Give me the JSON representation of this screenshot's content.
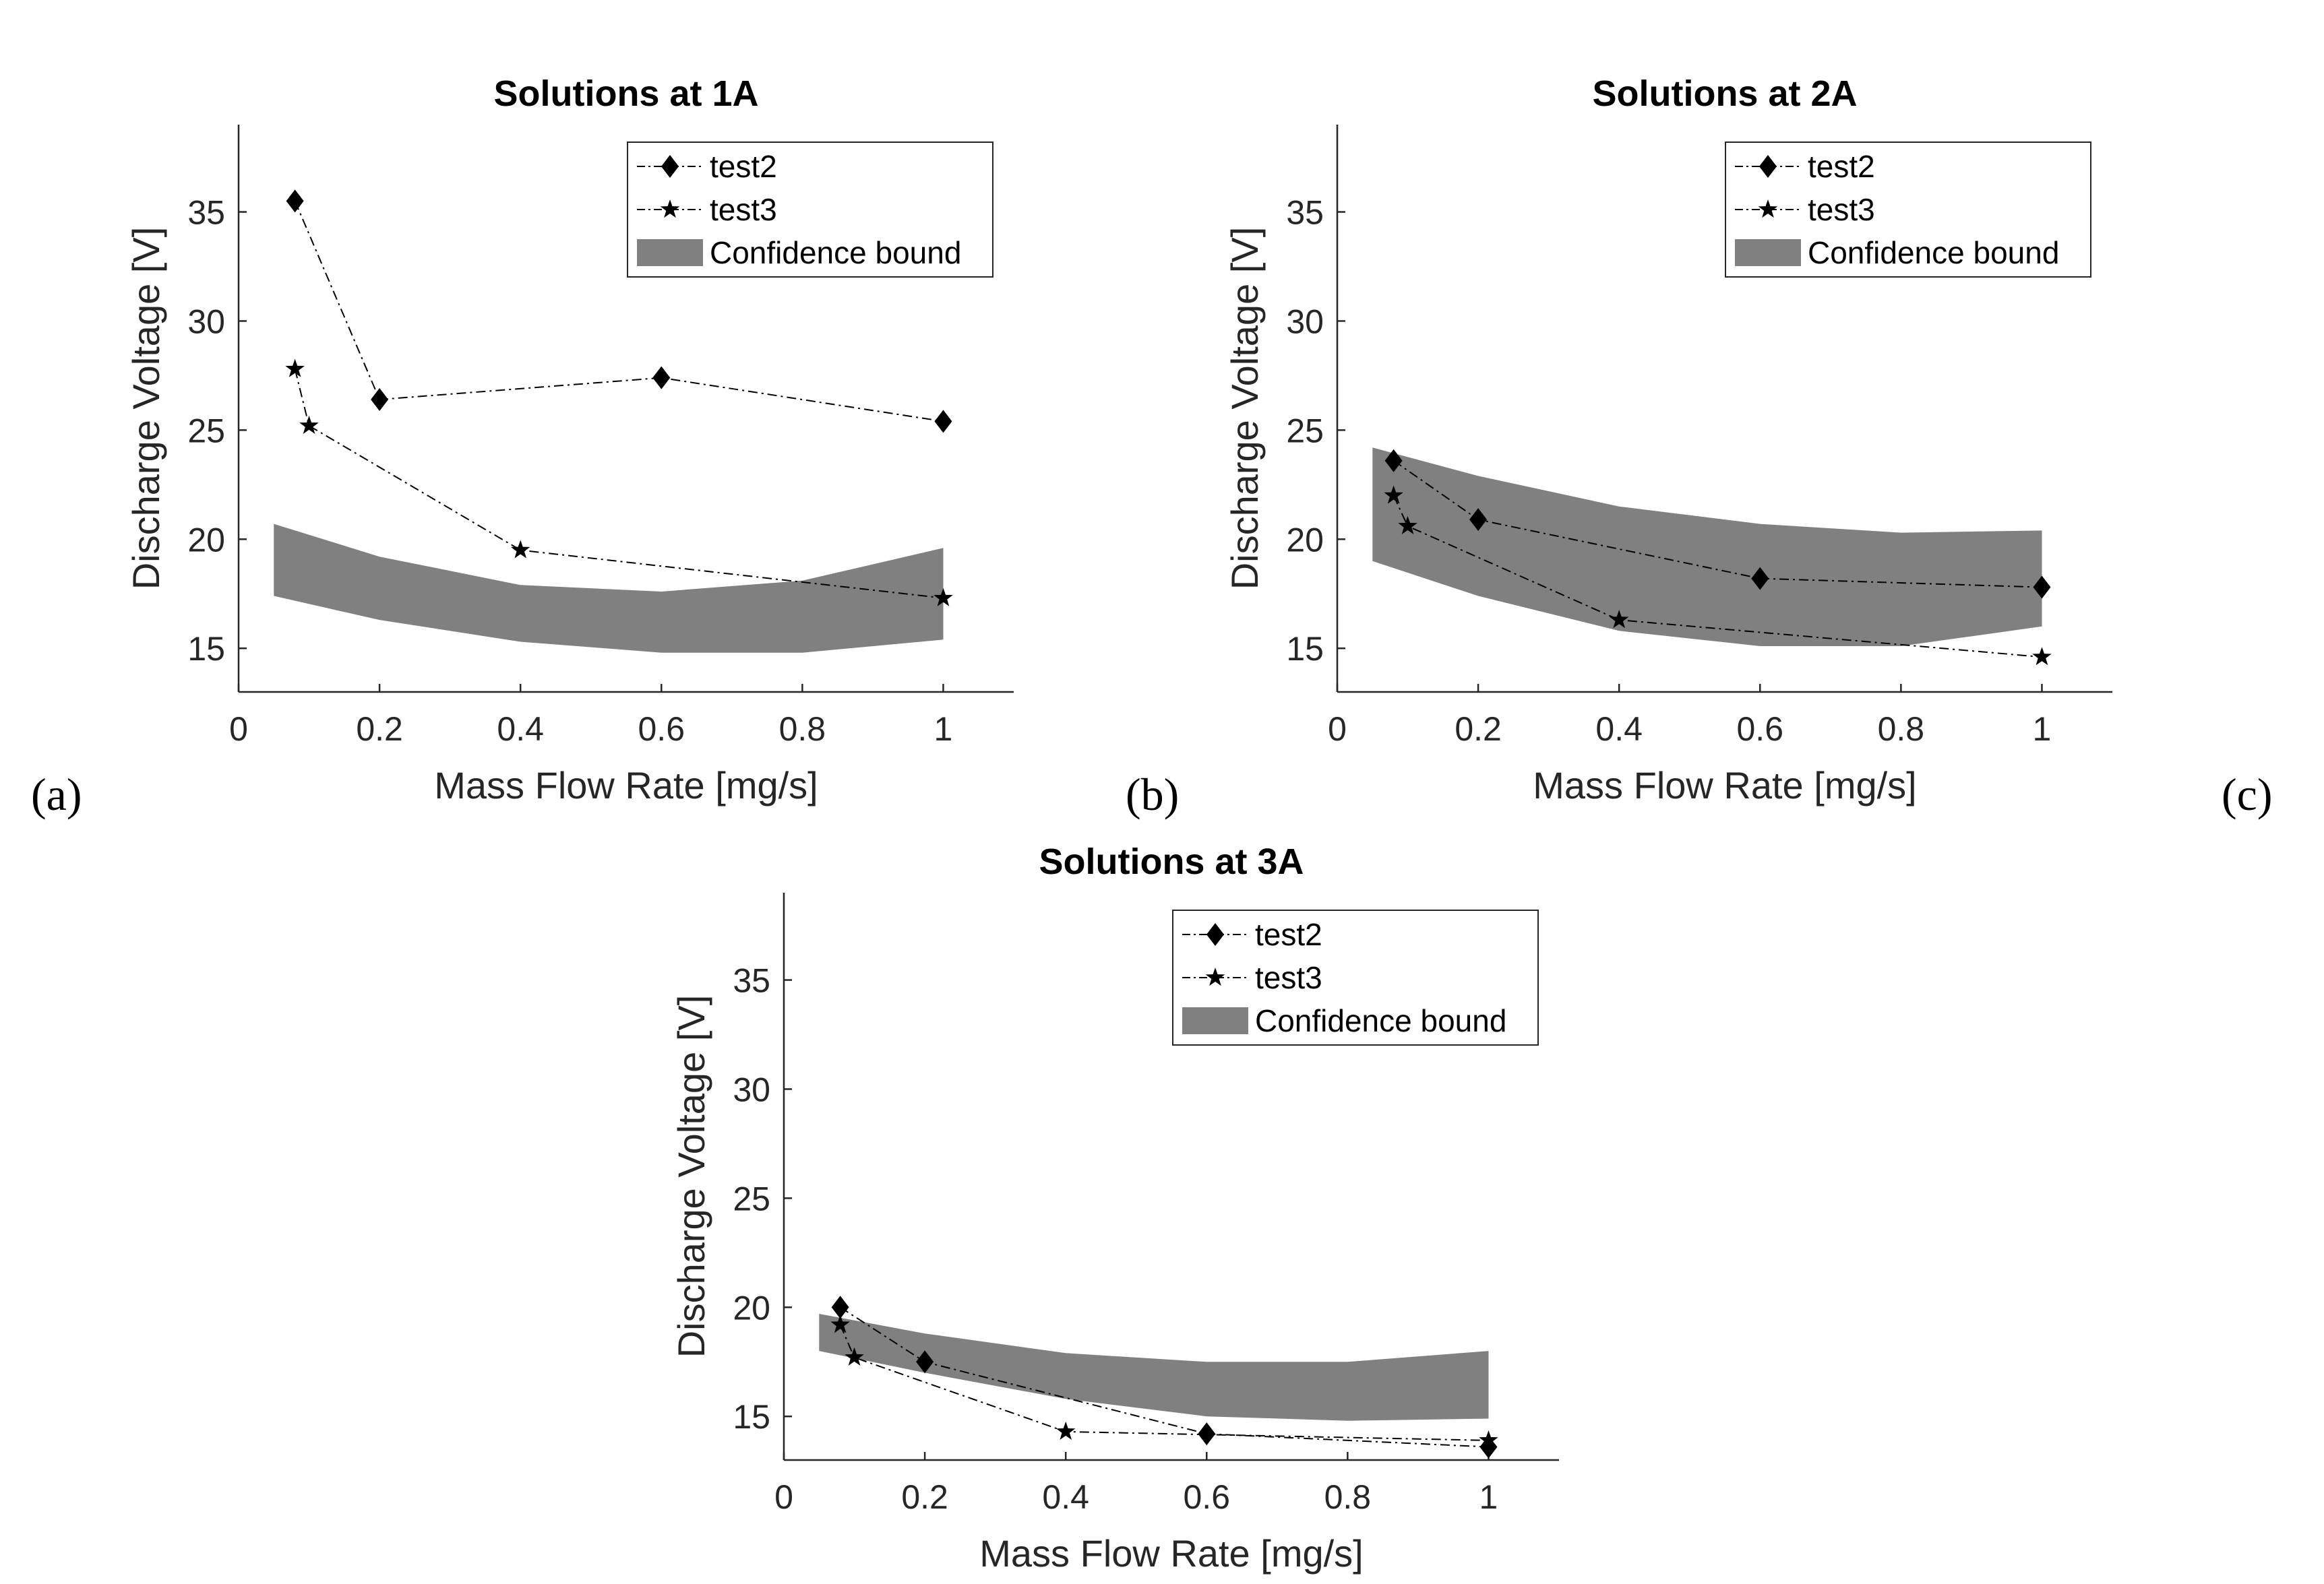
{
  "figure": {
    "panel_labels": [
      "(a)",
      "(b)",
      "(c)"
    ]
  },
  "chart_data": [
    {
      "type": "line",
      "title": "Solutions at 1A",
      "xlabel": "Mass Flow Rate [mg/s]",
      "ylabel": "Discharge Voltage [V]",
      "xlim": [
        0,
        1.1
      ],
      "ylim": [
        13,
        39
      ],
      "xticks": [
        0,
        0.2,
        0.4,
        0.6,
        0.8,
        1
      ],
      "xtick_labels": [
        "0",
        "0.2",
        "0.4",
        "0.6",
        "0.8",
        "1"
      ],
      "yticks": [
        15,
        20,
        25,
        30,
        35
      ],
      "ytick_labels": [
        "15",
        "20",
        "25",
        "30",
        "35"
      ],
      "legend": {
        "entries": [
          "test2",
          "test3",
          "Confidence bound"
        ],
        "position": "top-right"
      },
      "series": [
        {
          "name": "test2",
          "marker": "diamond",
          "x": [
            0.08,
            0.2,
            0.6,
            1.0
          ],
          "y": [
            35.5,
            26.4,
            27.4,
            25.4
          ]
        },
        {
          "name": "test3",
          "marker": "star",
          "x": [
            0.08,
            0.1,
            0.4,
            1.0
          ],
          "y": [
            27.8,
            25.2,
            19.5,
            17.3
          ]
        }
      ],
      "band": {
        "name": "Confidence bound",
        "color": "#808080",
        "x": [
          0.05,
          0.2,
          0.4,
          0.6,
          0.8,
          1.0
        ],
        "lower": [
          17.4,
          16.3,
          15.3,
          14.8,
          14.8,
          15.4
        ],
        "upper": [
          20.7,
          19.2,
          17.9,
          17.6,
          18.1,
          19.6
        ]
      }
    },
    {
      "type": "line",
      "title": "Solutions at 2A",
      "xlabel": "Mass Flow Rate [mg/s]",
      "ylabel": "Discharge Voltage [V]",
      "xlim": [
        0,
        1.1
      ],
      "ylim": [
        13,
        39
      ],
      "xticks": [
        0,
        0.2,
        0.4,
        0.6,
        0.8,
        1
      ],
      "xtick_labels": [
        "0",
        "0.2",
        "0.4",
        "0.6",
        "0.8",
        "1"
      ],
      "yticks": [
        15,
        20,
        25,
        30,
        35
      ],
      "ytick_labels": [
        "15",
        "20",
        "25",
        "30",
        "35"
      ],
      "legend": {
        "entries": [
          "test2",
          "test3",
          "Confidence bound"
        ],
        "position": "top-right"
      },
      "series": [
        {
          "name": "test2",
          "marker": "diamond",
          "x": [
            0.08,
            0.2,
            0.6,
            1.0
          ],
          "y": [
            23.6,
            20.9,
            18.2,
            17.8
          ]
        },
        {
          "name": "test3",
          "marker": "star",
          "x": [
            0.08,
            0.1,
            0.4,
            1.0
          ],
          "y": [
            22.0,
            20.6,
            16.3,
            14.6
          ]
        }
      ],
      "band": {
        "name": "Confidence bound",
        "color": "#808080",
        "x": [
          0.05,
          0.2,
          0.4,
          0.6,
          0.8,
          1.0
        ],
        "lower": [
          19.0,
          17.4,
          15.8,
          15.1,
          15.1,
          16.0
        ],
        "upper": [
          24.2,
          22.9,
          21.5,
          20.7,
          20.3,
          20.4
        ]
      }
    },
    {
      "type": "line",
      "title": "Solutions at 3A",
      "xlabel": "Mass Flow Rate [mg/s]",
      "ylabel": "Discharge Voltage [V]",
      "xlim": [
        0,
        1.1
      ],
      "ylim": [
        13,
        39
      ],
      "xticks": [
        0,
        0.2,
        0.4,
        0.6,
        0.8,
        1
      ],
      "xtick_labels": [
        "0",
        "0.2",
        "0.4",
        "0.6",
        "0.8",
        "1"
      ],
      "yticks": [
        15,
        20,
        25,
        30,
        35
      ],
      "ytick_labels": [
        "15",
        "20",
        "25",
        "30",
        "35"
      ],
      "legend": {
        "entries": [
          "test2",
          "test3",
          "Confidence bound"
        ],
        "position": "top-right"
      },
      "series": [
        {
          "name": "test2",
          "marker": "diamond",
          "x": [
            0.08,
            0.2,
            0.6,
            1.0
          ],
          "y": [
            20.0,
            17.5,
            14.2,
            13.6
          ]
        },
        {
          "name": "test3",
          "marker": "star",
          "x": [
            0.08,
            0.1,
            0.4,
            1.0
          ],
          "y": [
            19.2,
            17.7,
            14.3,
            13.9
          ]
        }
      ],
      "band": {
        "name": "Confidence bound",
        "color": "#808080",
        "x": [
          0.05,
          0.2,
          0.4,
          0.6,
          0.8,
          1.0
        ],
        "lower": [
          18.0,
          17.0,
          15.8,
          15.0,
          14.8,
          14.9
        ],
        "upper": [
          19.7,
          18.8,
          17.9,
          17.5,
          17.5,
          18.0
        ]
      }
    }
  ]
}
